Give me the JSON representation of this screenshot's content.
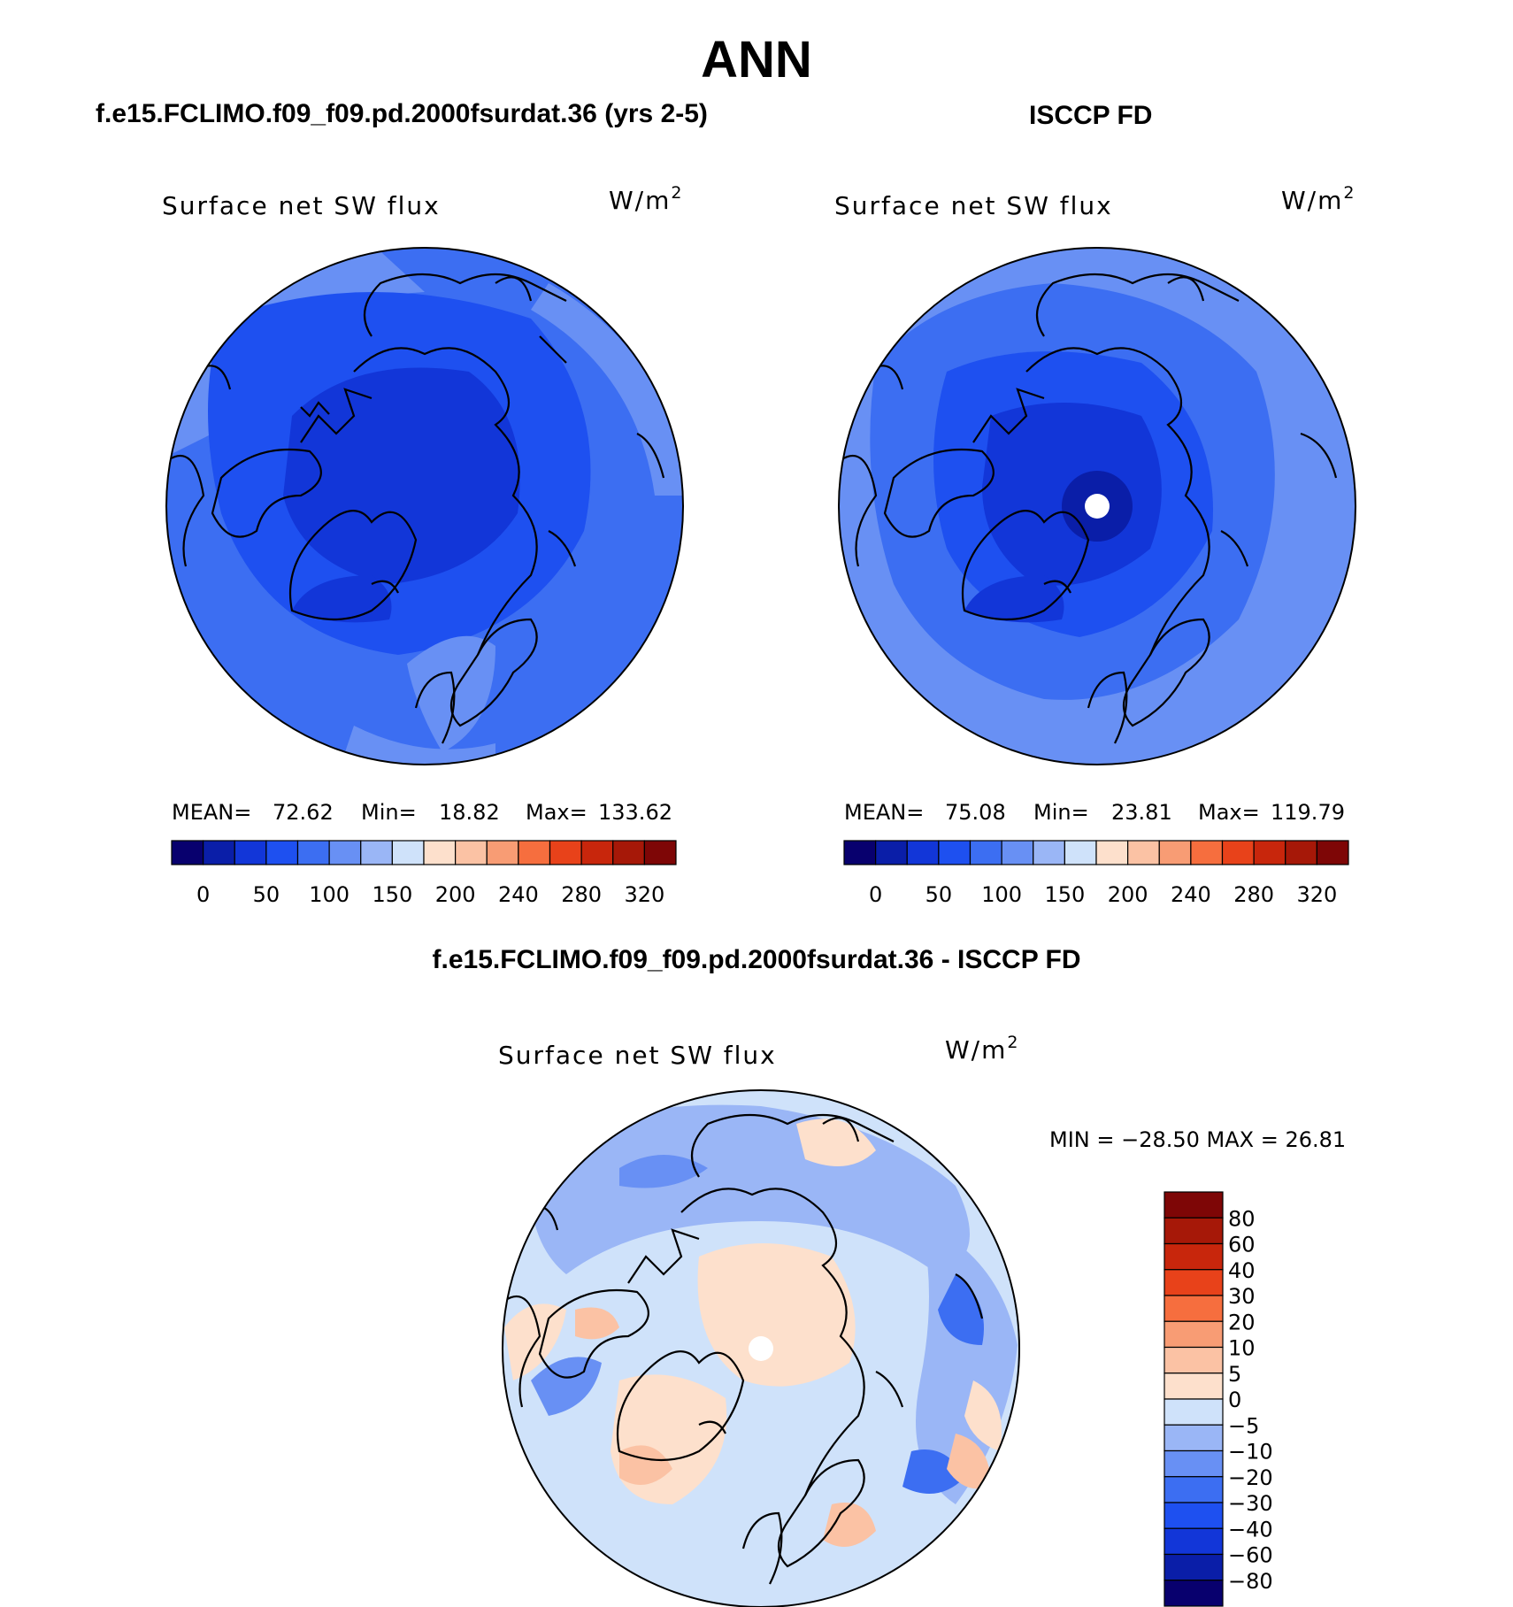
{
  "main_title": "ANN",
  "panels": [
    {
      "case_title": "f.e15.FCLIMO.f09_f09.pd.2000fsurdat.36 (yrs 2-5)",
      "variable": "Surface net SW flux",
      "units_base": "W/m",
      "units_exp": "2",
      "stats": {
        "mean_label": "MEAN=",
        "mean": "72.62",
        "min_label": "Min=",
        "min": "18.82",
        "max_label": "Max=",
        "max": "133.62"
      },
      "colorbar_labels": [
        "0",
        "50",
        "100",
        "150",
        "200",
        "240",
        "280",
        "320"
      ]
    },
    {
      "case_title": "ISCCP FD",
      "variable": "Surface net SW flux",
      "units_base": "W/m",
      "units_exp": "2",
      "stats": {
        "mean_label": "MEAN=",
        "mean": "75.08",
        "min_label": "Min=",
        "min": "23.81",
        "max_label": "Max=",
        "max": "119.79"
      },
      "colorbar_labels": [
        "0",
        "50",
        "100",
        "150",
        "200",
        "240",
        "280",
        "320"
      ]
    }
  ],
  "difference": {
    "title": "f.e15.FCLIMO.f09_f09.pd.2000fsurdat.36 - ISCCP FD",
    "variable": "Surface net SW flux",
    "units_base": "W/m",
    "units_exp": "2",
    "minmax_text": "MIN = −28.50 MAX =   26.81",
    "colorbar_labels": [
      "80",
      "60",
      "40",
      "30",
      "20",
      "10",
      "5",
      "0",
      "−5",
      "−10",
      "−20",
      "−30",
      "−40",
      "−60",
      "−80"
    ]
  },
  "colors": {
    "abs_scale": [
      "#08006e",
      "#0a1ea8",
      "#1236d8",
      "#1e50f0",
      "#3c6ef2",
      "#6890f4",
      "#9ab6f6",
      "#cfe2fa",
      "#fde0cc",
      "#fbc2a4",
      "#f89c74",
      "#f66e3e",
      "#e8421a",
      "#c8260c",
      "#a61808",
      "#7e0606"
    ],
    "diff_scale": [
      "#7e0606",
      "#a61808",
      "#c8260c",
      "#e8421a",
      "#f66e3e",
      "#f89c74",
      "#fbc2a4",
      "#fde0cc",
      "#cfe2fa",
      "#9ab6f6",
      "#6890f4",
      "#3c6ef2",
      "#1e50f0",
      "#1236d8",
      "#0a1ea8",
      "#08006e"
    ]
  }
}
